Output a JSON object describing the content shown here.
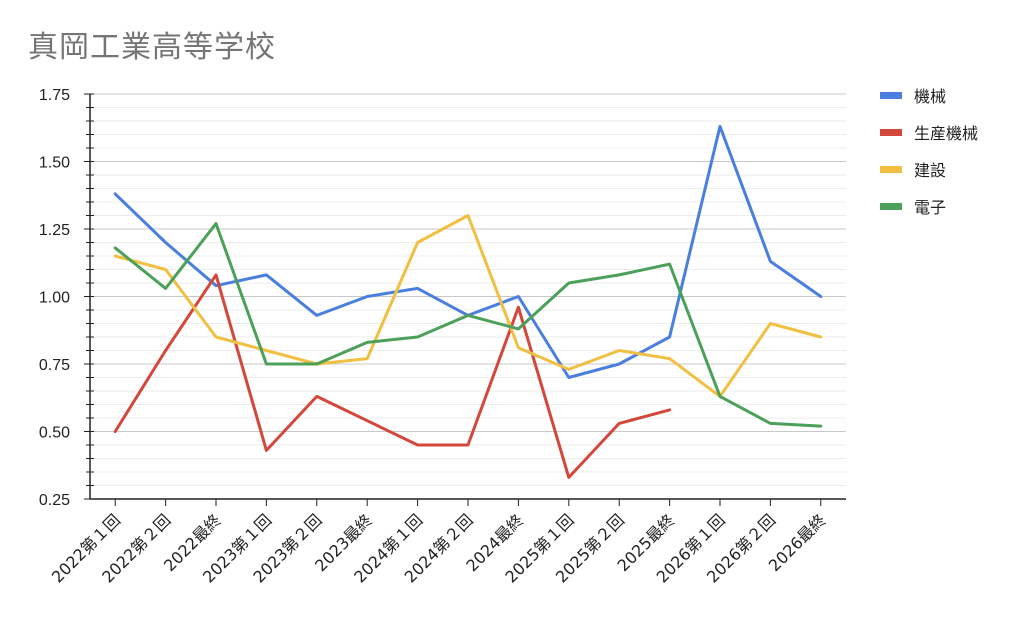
{
  "chart_data": {
    "type": "line",
    "title": "真岡工業高等学校",
    "xlabel": "",
    "ylabel": "",
    "ylim": [
      0.25,
      1.75
    ],
    "yticks": [
      "1.75",
      "1.50",
      "1.25",
      "1.00",
      "0.75",
      "0.50",
      "0.25"
    ],
    "grid": true,
    "legend_position": "right",
    "categories": [
      "2022第１回",
      "2022第２回",
      "2022最終",
      "2023第１回",
      "2023第２回",
      "2023最終",
      "2024第１回",
      "2024第２回",
      "2024最終",
      "2025第１回",
      "2025第２回",
      "2025最終",
      "2026第１回",
      "2026第２回",
      "2026最終"
    ],
    "series": [
      {
        "name": "機械",
        "color": "#4a7fe0",
        "values": [
          1.38,
          1.2,
          1.04,
          1.08,
          0.93,
          1.0,
          1.03,
          0.93,
          1.0,
          0.7,
          0.75,
          0.85,
          1.63,
          1.13,
          1.0
        ]
      },
      {
        "name": "生産機械",
        "color": "#d4473b",
        "values": [
          0.5,
          0.8,
          1.08,
          0.43,
          0.63,
          0.54,
          0.45,
          0.45,
          0.96,
          0.33,
          0.53,
          0.58,
          null,
          null,
          null
        ]
      },
      {
        "name": "建設",
        "color": "#f1c042",
        "values": [
          1.15,
          1.1,
          0.85,
          0.8,
          0.75,
          0.77,
          1.2,
          1.3,
          0.81,
          0.73,
          0.8,
          0.77,
          0.63,
          0.9,
          0.85
        ]
      },
      {
        "name": "電子",
        "color": "#4ca05a",
        "values": [
          1.18,
          1.03,
          1.27,
          0.75,
          0.75,
          0.83,
          0.85,
          0.93,
          0.88,
          1.05,
          1.08,
          1.12,
          0.63,
          0.53,
          0.52
        ]
      }
    ]
  }
}
